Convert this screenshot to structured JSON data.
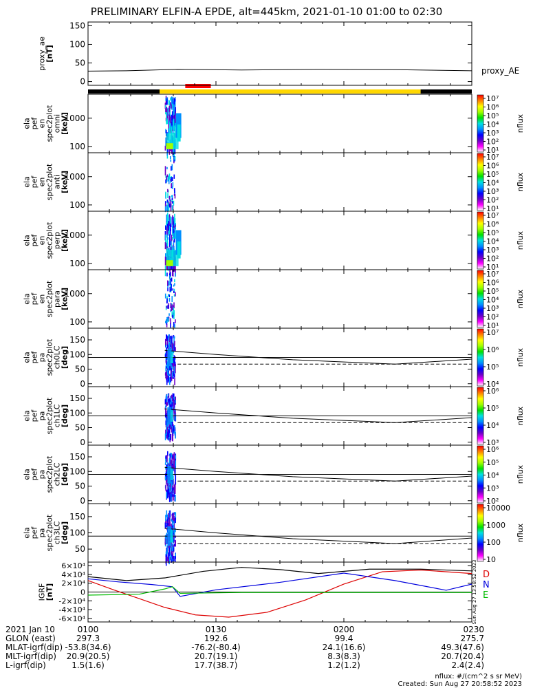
{
  "title": "PRELIMINARY ELFIN-A EPDE, alt=445km, 2021-01-10 01:00 to 02:30",
  "colors": {
    "sci_zone": "#ff0000",
    "day_bar": "#ffd700",
    "night_bar": "#000000",
    "grid": "#000000"
  },
  "chart_data": [
    {
      "type": "line",
      "panel": "proxy_ae",
      "ylabel": [
        "proxy_ae",
        "[nT]"
      ],
      "yticks": [
        "0",
        "50",
        "100",
        "150"
      ],
      "ylim": [
        -10,
        160
      ],
      "series": [
        {
          "name": "proxy_AE",
          "x": [
            1.0,
            1.15,
            1.35,
            1.6,
            1.9,
            2.2,
            2.5
          ],
          "values": [
            28,
            29,
            33,
            31,
            33,
            32,
            29
          ]
        }
      ]
    },
    {
      "type": "heatmap",
      "panel": "spec_omni",
      "ylabel": [
        "ela",
        "pef",
        "en",
        "spec2plot",
        "omni",
        "[keV]"
      ],
      "yticks": [
        "100",
        "1000"
      ],
      "ylim_keV": [
        60,
        7000
      ],
      "zlabel": "nflux",
      "zticks": [
        "10¹",
        "10²",
        "10³",
        "10⁴",
        "10⁵",
        "10⁶",
        "10⁷"
      ],
      "active_x": [
        1.3,
        1.34
      ]
    },
    {
      "type": "heatmap",
      "panel": "spec_anti",
      "ylabel": [
        "ela",
        "pef",
        "en",
        "spec2plot",
        "anti",
        "[keV]"
      ],
      "yticks": [
        "100",
        "1000"
      ],
      "ylim_keV": [
        60,
        7000
      ],
      "zlabel": "nflux",
      "zticks": [
        "10¹",
        "10²",
        "10³",
        "10⁴",
        "10⁵",
        "10⁶",
        "10⁷"
      ],
      "active_x": [
        1.3,
        1.34
      ]
    },
    {
      "type": "heatmap",
      "panel": "spec_perp",
      "ylabel": [
        "ela",
        "pef",
        "en",
        "spec2plot",
        "perp",
        "[keV]"
      ],
      "yticks": [
        "100",
        "1000"
      ],
      "ylim_keV": [
        60,
        7000
      ],
      "zlabel": "nflux",
      "zticks": [
        "10¹",
        "10²",
        "10³",
        "10⁴",
        "10⁵",
        "10⁶",
        "10⁷"
      ],
      "active_x": [
        1.3,
        1.34
      ]
    },
    {
      "type": "heatmap",
      "panel": "spec_para",
      "ylabel": [
        "ela",
        "pef",
        "en",
        "spec2plot",
        "para",
        "[keV]"
      ],
      "yticks": [
        "100",
        "1000"
      ],
      "ylim_keV": [
        60,
        7000
      ],
      "zlabel": "nflux",
      "zticks": [
        "10¹",
        "10²",
        "10³",
        "10⁴",
        "10⁵",
        "10⁶",
        "10⁷"
      ],
      "active_x": [
        1.3,
        1.34
      ]
    },
    {
      "type": "heatmap",
      "panel": "pa_ch0",
      "ylabel": [
        "ela",
        "pef",
        "pa",
        "spec2plot",
        "ch0LC",
        "[deg]"
      ],
      "yticks": [
        "0",
        "50",
        "100",
        "150"
      ],
      "ylim": [
        -10,
        190
      ],
      "zlabel": "nflux",
      "zticks": [
        "10⁴",
        "10⁵",
        "10⁶",
        "10⁷"
      ],
      "lc_x": [
        1.3,
        1.5,
        1.8,
        2.2,
        2.5
      ],
      "lc": [
        114,
        100,
        82,
        67,
        84
      ],
      "antilc_x": [
        1.35,
        2.5
      ],
      "antilc": [
        67,
        67
      ],
      "active_x": [
        1.3,
        1.34
      ]
    },
    {
      "type": "heatmap",
      "panel": "pa_ch1",
      "ylabel": [
        "ela",
        "pef",
        "pa",
        "spec2plot",
        "ch1LC",
        "[deg]"
      ],
      "yticks": [
        "0",
        "50",
        "100",
        "150"
      ],
      "ylim": [
        -10,
        190
      ],
      "zlabel": "nflux",
      "zticks": [
        "10³",
        "10⁴",
        "10⁵",
        "10⁶"
      ],
      "lc_x": [
        1.3,
        1.5,
        1.8,
        2.2,
        2.5
      ],
      "lc": [
        114,
        100,
        82,
        67,
        84
      ],
      "antilc_x": [
        1.35,
        2.5
      ],
      "antilc": [
        67,
        67
      ],
      "active_x": [
        1.3,
        1.34
      ]
    },
    {
      "type": "heatmap",
      "panel": "pa_ch2",
      "ylabel": [
        "ela",
        "pef",
        "pa",
        "spec2plot",
        "ch2LC",
        "[deg]"
      ],
      "yticks": [
        "0",
        "50",
        "100",
        "150"
      ],
      "ylim": [
        -10,
        190
      ],
      "zlabel": "nflux",
      "zticks": [
        "10²",
        "10³",
        "10⁴",
        "10⁵",
        "10⁶"
      ],
      "lc_x": [
        1.3,
        1.5,
        1.8,
        2.2,
        2.5
      ],
      "lc": [
        114,
        100,
        82,
        67,
        84
      ],
      "antilc_x": [
        1.35,
        2.5
      ],
      "antilc": [
        67,
        67
      ],
      "active_x": [
        1.3,
        1.34
      ]
    },
    {
      "type": "heatmap",
      "panel": "pa_ch3",
      "ylabel": [
        "ela",
        "pef",
        "pa",
        "spec2plot",
        "ch3LC",
        "[deg]"
      ],
      "yticks": [
        "50",
        "100",
        "150"
      ],
      "ylim": [
        10,
        190
      ],
      "zlabel": "nflux",
      "zticks": [
        "10",
        "100",
        "1000",
        "10000"
      ],
      "lc_x": [
        1.3,
        1.5,
        1.8,
        2.2,
        2.5
      ],
      "lc": [
        114,
        100,
        82,
        67,
        84
      ],
      "antilc_x": [
        1.35,
        2.5
      ],
      "antilc": [
        67,
        67
      ],
      "active_x": [
        1.3,
        1.34
      ]
    },
    {
      "type": "line",
      "panel": "igrf",
      "ylabel": [
        "IGRF",
        "[nT]"
      ],
      "yticks": [
        "-6×10⁴",
        "-4×10⁴",
        "-2×10⁴",
        "0",
        "2×10⁴",
        "4×10⁴",
        "6×10⁴"
      ],
      "ylim": [
        -68000,
        68000
      ],
      "side_label": "Sun Aug 27 13:58:52 2023",
      "series": [
        {
          "name": "D",
          "color": "#dd0000",
          "x": [
            1.0,
            1.1,
            1.2,
            1.3,
            1.42,
            1.55,
            1.7,
            1.85,
            2.0,
            2.15,
            2.3,
            2.5
          ],
          "values": [
            26000,
            5000,
            -15000,
            -35000,
            -52000,
            -57000,
            -46000,
            -18000,
            18000,
            46000,
            50000,
            42000
          ]
        },
        {
          "name": "N",
          "color": "#0000dd",
          "x": [
            1.0,
            1.12,
            1.25,
            1.33,
            1.36,
            1.5,
            1.75,
            2.0,
            2.2,
            2.4,
            2.5
          ],
          "values": [
            30000,
            23000,
            17000,
            12000,
            -10000,
            5000,
            22000,
            43000,
            26000,
            4000,
            18000
          ]
        },
        {
          "name": "E",
          "color": "#00bb00",
          "x": [
            1.0,
            1.2,
            1.3,
            1.33,
            1.36,
            1.6,
            2.0,
            2.5
          ],
          "values": [
            -7000,
            -5000,
            7000,
            12000,
            -3000,
            -1000,
            -1000,
            -1000
          ]
        },
        {
          "name": "",
          "color": "#000000",
          "x": [
            1.0,
            1.15,
            1.3,
            1.45,
            1.6,
            1.75,
            1.9,
            2.1,
            2.3,
            2.5
          ],
          "values": [
            35000,
            26000,
            32000,
            47000,
            56000,
            51000,
            42000,
            52000,
            52000,
            48000
          ]
        }
      ]
    }
  ],
  "bottom_axis": {
    "row_labels": [
      "2021 Jan 10",
      "GLON (east)",
      "MLAT-igrf(dip)",
      "MLT-igrf(dip)",
      "L-igrf(dip)"
    ],
    "columns": [
      {
        "x": 1.0,
        "cells": [
          "0100",
          "297.3",
          "-53.8(34.6)",
          "20.9(20.5)",
          "1.5(1.6)"
        ]
      },
      {
        "x": 1.5,
        "cells": [
          "0130",
          "192.6",
          "-76.2(-80.4)",
          "20.7(19.1)",
          "17.7(38.7)"
        ]
      },
      {
        "x": 2.0,
        "cells": [
          "0200",
          "99.4",
          "24.1(16.6)",
          "8.3(8.3)",
          "1.2(1.2)"
        ]
      },
      {
        "x": 2.5,
        "cells": [
          "0230",
          "275.7",
          "49.3(47.6)",
          "20.7(20.4)",
          "2.4(2.4)"
        ]
      }
    ]
  },
  "footer": {
    "units": "nflux: #/(cm^2 s sr MeV)",
    "created": "Created: Sun Aug 27 20:58:52 2023"
  }
}
